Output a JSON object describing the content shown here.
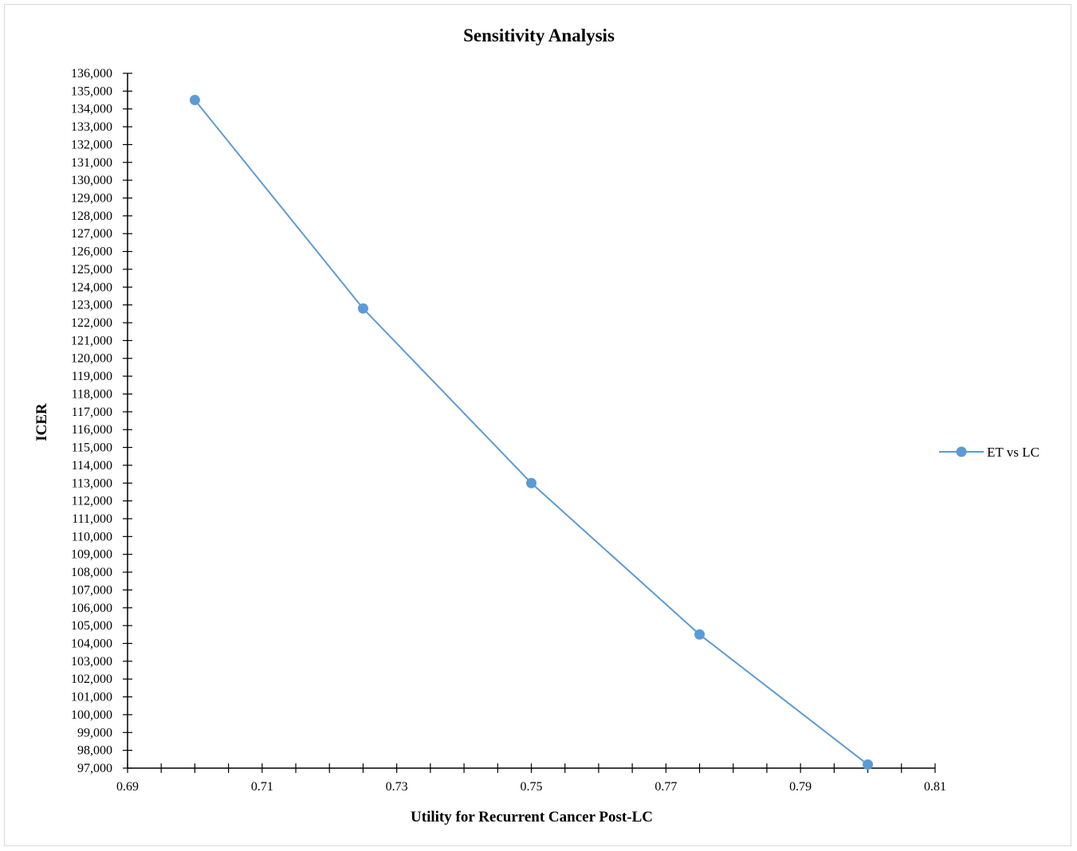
{
  "chart_data": {
    "type": "line",
    "title": "Sensitivity Analysis",
    "xlabel": "Utility for Recurrent Cancer Post-LC",
    "ylabel": "ICER",
    "xlim": [
      0.69,
      0.81
    ],
    "ylim": [
      97000,
      136000
    ],
    "x_ticks": [
      "0.69",
      "0.71",
      "0.73",
      "0.75",
      "0.77",
      "0.79",
      "0.81"
    ],
    "x_tick_values": [
      0.69,
      0.71,
      0.73,
      0.75,
      0.77,
      0.79,
      0.81
    ],
    "x_minor_step": 0.005,
    "y_step": 1000,
    "grid": false,
    "legend_position": "right",
    "series": [
      {
        "name": "ET vs LC",
        "color": "#5b9bd5",
        "marker": "circle",
        "x": [
          0.7,
          0.725,
          0.75,
          0.775,
          0.8
        ],
        "y": [
          134500,
          122800,
          113000,
          104500,
          97200
        ]
      }
    ]
  }
}
